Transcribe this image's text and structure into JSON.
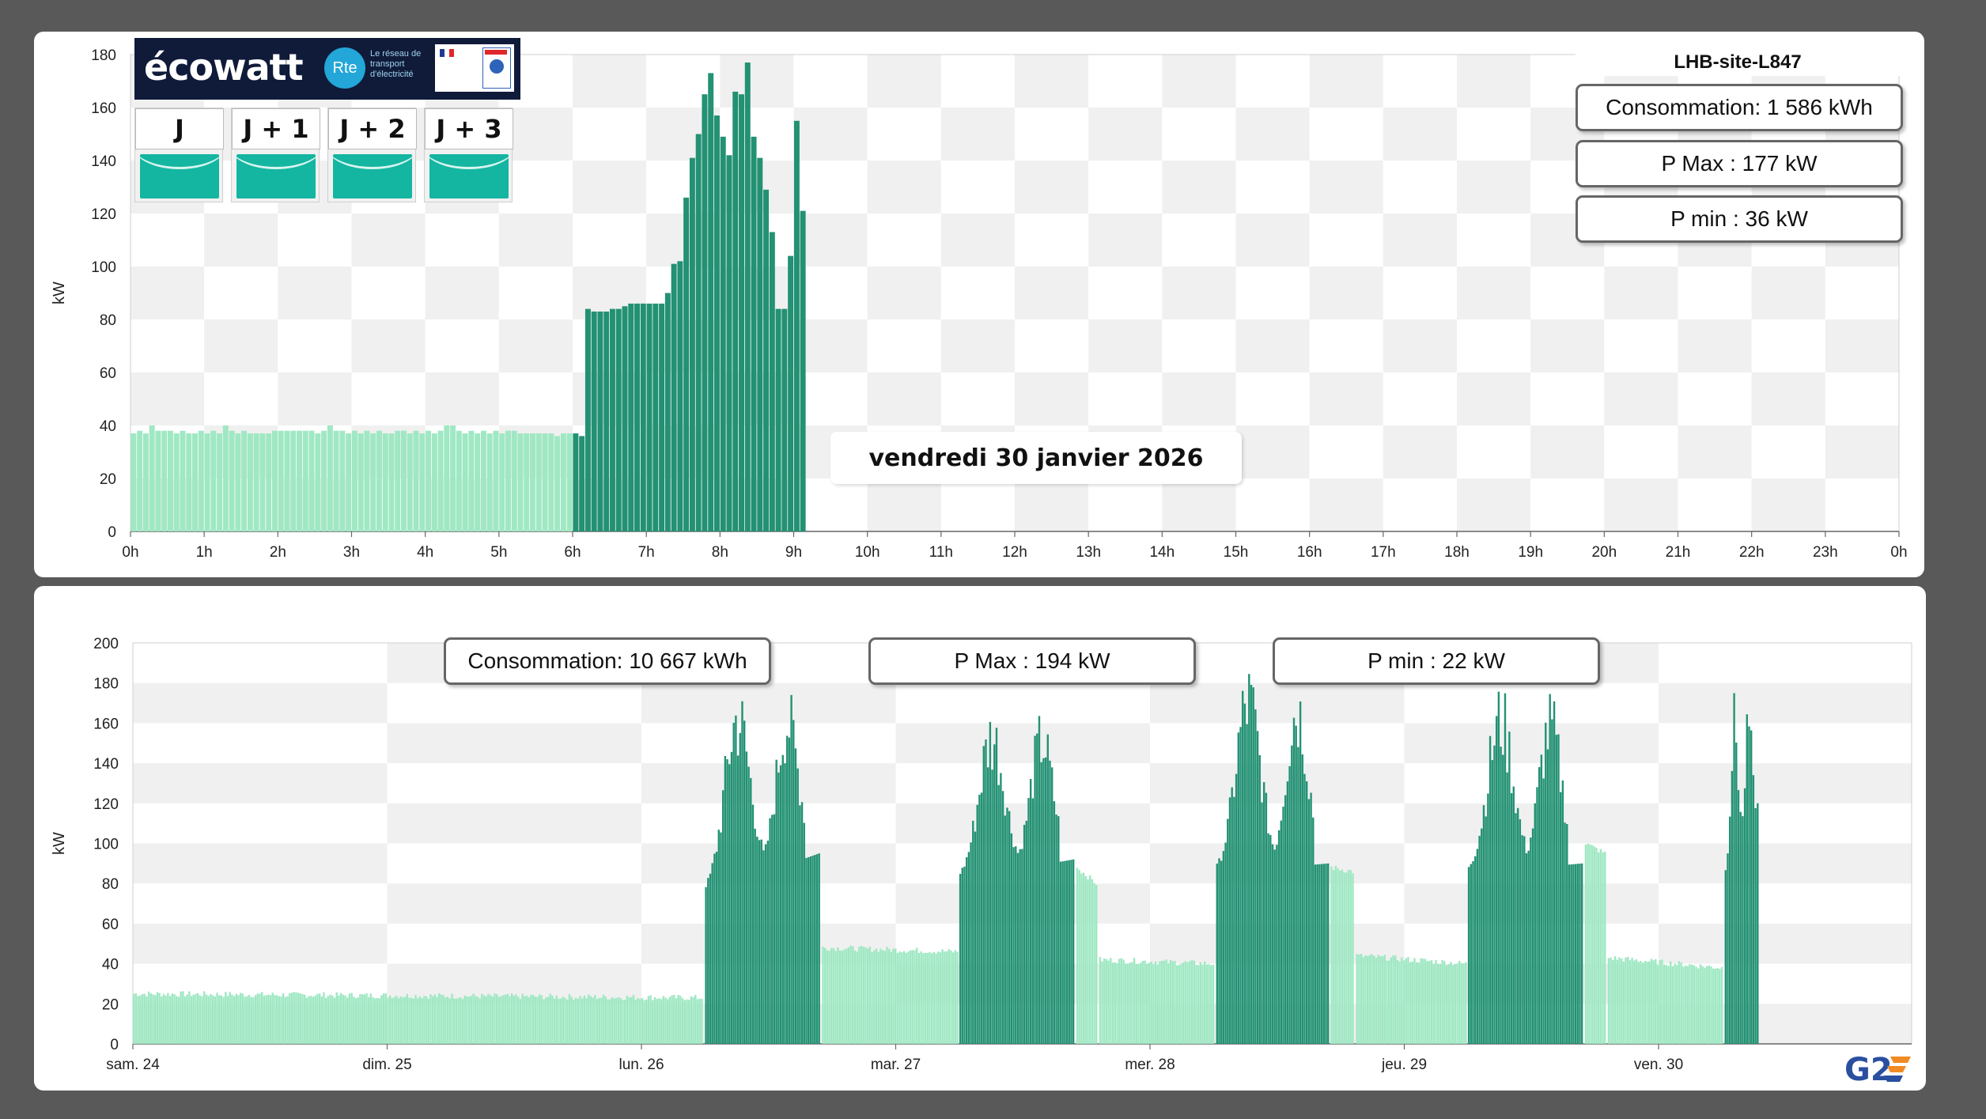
{
  "site_title": "LHB-site-L847",
  "date_label": "vendredi 30 janvier 2026",
  "ecowatt": {
    "logo_text": "écowatt",
    "rte_text": "Rte",
    "rte_caption": "Le réseau de transport d'électricité",
    "days": [
      "J",
      "J + 1",
      "J + 2",
      "J + 3"
    ],
    "signal_color": "#14b6a1"
  },
  "colors": {
    "light_bar": "#9fe8c3",
    "dark_bar": "#239173",
    "grid_gray": "#f0f0f0",
    "grid_white": "#ffffff"
  },
  "chart_data": [
    {
      "type": "bar",
      "title": "",
      "ylabel": "kW",
      "xlabel": "",
      "ylim": [
        0,
        180
      ],
      "yticks": [
        0,
        20,
        40,
        60,
        80,
        100,
        120,
        140,
        160,
        180
      ],
      "xticks": [
        "0h",
        "1h",
        "2h",
        "3h",
        "4h",
        "5h",
        "6h",
        "7h",
        "8h",
        "9h",
        "10h",
        "11h",
        "12h",
        "13h",
        "14h",
        "15h",
        "16h",
        "17h",
        "18h",
        "19h",
        "20h",
        "21h",
        "22h",
        "23h",
        "0h"
      ],
      "interval_minutes": 5,
      "stats": {
        "consommation": "Consommation: 1 586 kWh",
        "pmax": "P Max :  177 kW",
        "pmin": "P min : 36 kW"
      },
      "night_values": [
        37,
        38,
        37,
        40,
        38,
        38,
        38,
        37,
        38,
        37,
        37,
        38,
        37,
        38,
        37,
        40,
        38,
        37,
        38,
        37,
        37,
        37,
        37,
        38,
        38,
        38,
        38,
        38,
        38,
        38,
        37,
        38,
        40,
        38,
        38,
        37,
        38,
        37,
        38,
        37,
        38,
        37,
        37,
        38,
        38,
        37,
        38,
        37,
        38,
        37,
        38,
        40,
        40,
        38,
        37,
        38,
        37,
        38,
        37,
        38,
        37,
        38,
        38,
        37,
        37,
        37,
        37,
        37,
        37,
        36,
        37,
        37
      ],
      "day_values": [
        37,
        36,
        84,
        83,
        83,
        83,
        84,
        84,
        85,
        86,
        86,
        86,
        86,
        86,
        86,
        90,
        101,
        102,
        126,
        141,
        150,
        165,
        173,
        157,
        149,
        142,
        166,
        165,
        177,
        149,
        141,
        129,
        113,
        84,
        84,
        104,
        155,
        121
      ]
    },
    {
      "type": "bar",
      "title": "",
      "ylabel": "kW",
      "xlabel": "",
      "ylim": [
        0,
        200
      ],
      "yticks": [
        0,
        20,
        40,
        60,
        80,
        100,
        120,
        140,
        160,
        180,
        200
      ],
      "xticks": [
        "sam. 24",
        "dim. 25",
        "lun. 26",
        "mar. 27",
        "mer. 28",
        "jeu. 29",
        "ven. 30"
      ],
      "stats": {
        "consommation": "Consommation: 10 667 kWh",
        "pmax": "P Max :  194 kW",
        "pmin": "P min : 22 kW"
      },
      "segments": [
        {
          "day_start": 0.0,
          "day_end": 2.25,
          "level_start": 25,
          "level_end": 23,
          "kind": "base"
        },
        {
          "day_start": 2.25,
          "day_end": 2.71,
          "level_start": 75,
          "level_end": 95,
          "peak": 185,
          "kind": "work"
        },
        {
          "day_start": 2.71,
          "day_end": 3.25,
          "level_start": 48,
          "level_end": 46,
          "kind": "base"
        },
        {
          "day_start": 3.25,
          "day_end": 3.71,
          "level_start": 82,
          "level_end": 92,
          "peak": 172,
          "kind": "work"
        },
        {
          "day_start": 3.71,
          "day_end": 3.8,
          "level_start": 88,
          "level_end": 80,
          "kind": "base"
        },
        {
          "day_start": 3.8,
          "day_end": 4.26,
          "level_start": 42,
          "level_end": 40,
          "kind": "base"
        },
        {
          "day_start": 4.26,
          "day_end": 4.71,
          "level_start": 85,
          "level_end": 90,
          "peak": 194,
          "kind": "work"
        },
        {
          "day_start": 4.71,
          "day_end": 4.81,
          "level_start": 88,
          "level_end": 86,
          "kind": "base"
        },
        {
          "day_start": 4.81,
          "day_end": 5.25,
          "level_start": 44,
          "level_end": 40,
          "kind": "base"
        },
        {
          "day_start": 5.25,
          "day_end": 5.71,
          "level_start": 85,
          "level_end": 90,
          "peak": 182,
          "kind": "work"
        },
        {
          "day_start": 5.71,
          "day_end": 5.8,
          "level_start": 100,
          "level_end": 95,
          "kind": "base"
        },
        {
          "day_start": 5.8,
          "day_end": 6.26,
          "level_start": 43,
          "level_end": 38,
          "kind": "base"
        },
        {
          "day_start": 6.26,
          "day_end": 6.4,
          "level_start": 84,
          "level_end": 120,
          "peak": 177,
          "kind": "work"
        }
      ]
    }
  ]
}
